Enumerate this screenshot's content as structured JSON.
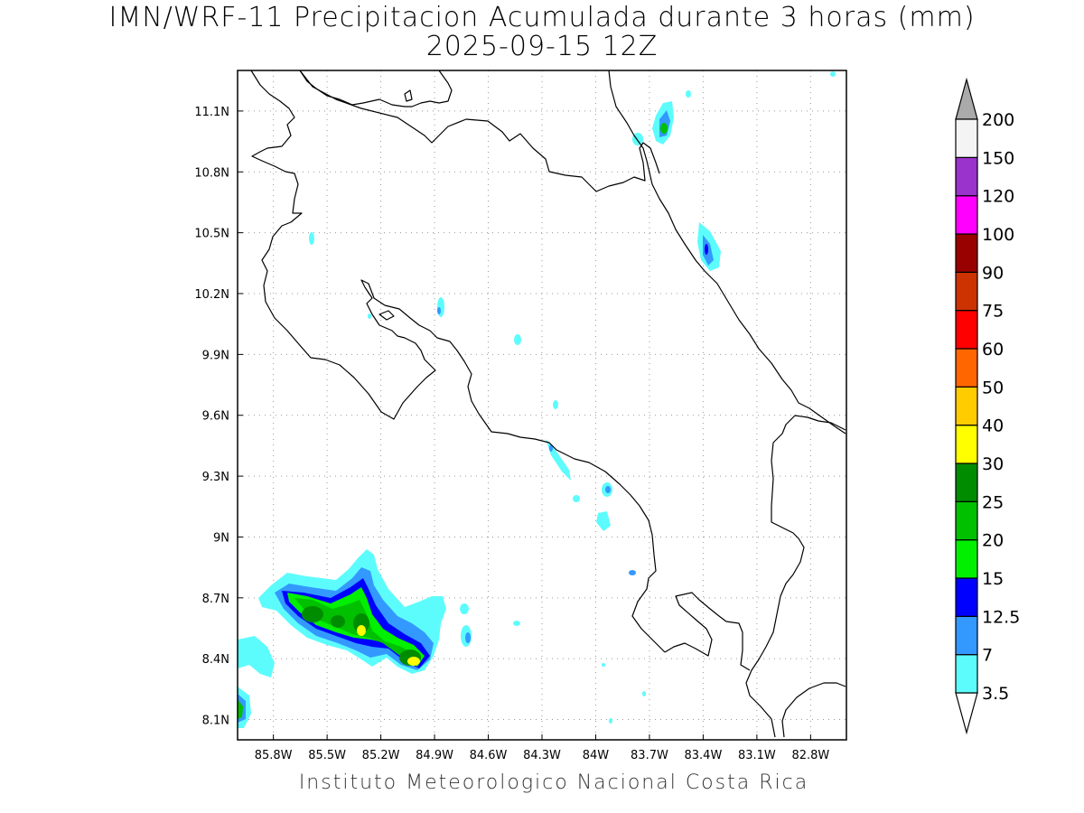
{
  "title": "IMN/WRF-11 Precipitacion Acumulada durante 3 horas (mm)",
  "subtitle": "2025-09-15 12Z",
  "footer": "Instituto Meteorologico Nacional Costa Rica",
  "map": {
    "lon_range": [
      -86.0,
      -82.6
    ],
    "lat_range": [
      8.0,
      11.3
    ],
    "lon_ticks": [
      {
        "value": -85.8,
        "label": "85.8W"
      },
      {
        "value": -85.5,
        "label": "85.5W"
      },
      {
        "value": -85.2,
        "label": "85.2W"
      },
      {
        "value": -84.9,
        "label": "84.9W"
      },
      {
        "value": -84.6,
        "label": "84.6W"
      },
      {
        "value": -84.3,
        "label": "84.3W"
      },
      {
        "value": -84.0,
        "label": "84W"
      },
      {
        "value": -83.7,
        "label": "83.7W"
      },
      {
        "value": -83.4,
        "label": "83.4W"
      },
      {
        "value": -83.1,
        "label": "83.1W"
      },
      {
        "value": -82.8,
        "label": "82.8W"
      }
    ],
    "lat_ticks": [
      {
        "value": 8.1,
        "label": "8.1N"
      },
      {
        "value": 8.4,
        "label": "8.4N"
      },
      {
        "value": 8.7,
        "label": "8.7N"
      },
      {
        "value": 9.0,
        "label": "9N"
      },
      {
        "value": 9.3,
        "label": "9.3N"
      },
      {
        "value": 9.6,
        "label": "9.6N"
      },
      {
        "value": 9.9,
        "label": "9.9N"
      },
      {
        "value": 10.2,
        "label": "10.2N"
      },
      {
        "value": 10.5,
        "label": "10.5N"
      },
      {
        "value": 10.8,
        "label": "10.8N"
      },
      {
        "value": 11.1,
        "label": "11.1N"
      }
    ],
    "grid": "dotted"
  },
  "colorbar": {
    "levels": [
      {
        "label": "3.5",
        "color": "#5dfcfc"
      },
      {
        "label": "7",
        "color": "#3399ff"
      },
      {
        "label": "12.5",
        "color": "#0000ff"
      },
      {
        "label": "15",
        "color": "#00f000"
      },
      {
        "label": "20",
        "color": "#00c000"
      },
      {
        "label": "25",
        "color": "#008c00"
      },
      {
        "label": "30",
        "color": "#ffff00"
      },
      {
        "label": "40",
        "color": "#ffcc00"
      },
      {
        "label": "50",
        "color": "#ff6600"
      },
      {
        "label": "60",
        "color": "#ff0000"
      },
      {
        "label": "75",
        "color": "#cc3300"
      },
      {
        "label": "90",
        "color": "#990000"
      },
      {
        "label": "100",
        "color": "#ff00ff"
      },
      {
        "label": "120",
        "color": "#9933cc"
      },
      {
        "label": "150",
        "color": "#f4f4f4"
      },
      {
        "label": "200",
        "color": "#aaaaaa"
      }
    ],
    "under_color": "#ffffff",
    "over_color": "#aaaaaa"
  }
}
